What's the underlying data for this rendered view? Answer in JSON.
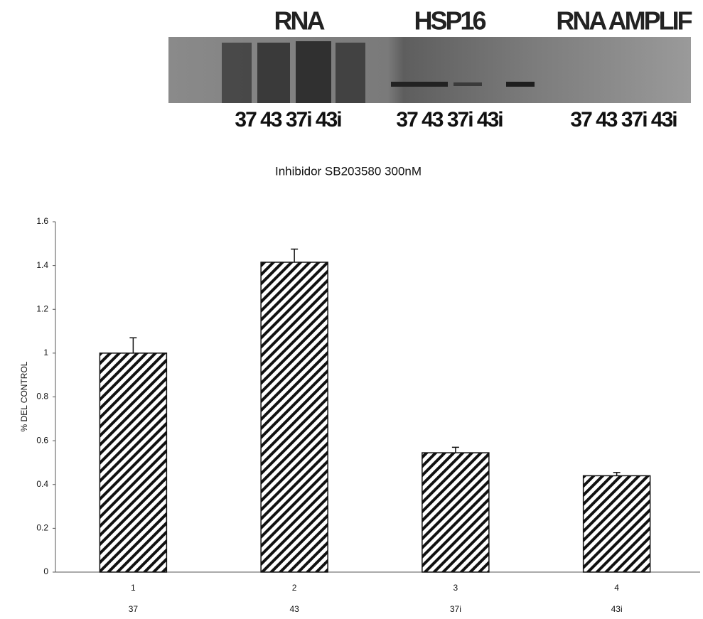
{
  "gel": {
    "groups": [
      {
        "title": "RNA",
        "lanes": [
          "37",
          "43",
          "37i",
          "43i"
        ]
      },
      {
        "title": "HSP16",
        "lanes": [
          "37",
          "43",
          "37i",
          "43i"
        ]
      },
      {
        "title": "RNA AMPLIF",
        "lanes": [
          "37",
          "43",
          "37i",
          "43i"
        ]
      }
    ]
  },
  "chart_data": {
    "type": "bar",
    "title": "Inhibidor SB203580 300nM",
    "y_label": "% DEL CONTROL",
    "categories": [
      "1",
      "2",
      "3",
      "4"
    ],
    "sublabels": [
      "37",
      "43",
      "37i",
      "43i"
    ],
    "values": [
      1.0,
      1.415,
      0.545,
      0.44
    ],
    "errors": [
      0.07,
      0.06,
      0.025,
      0.015
    ],
    "color": "#111111",
    "ylim": [
      0,
      1.6
    ],
    "yticks": [
      0,
      0.2,
      0.4,
      0.6,
      0.8,
      1,
      1.2,
      1.4,
      1.6
    ]
  }
}
